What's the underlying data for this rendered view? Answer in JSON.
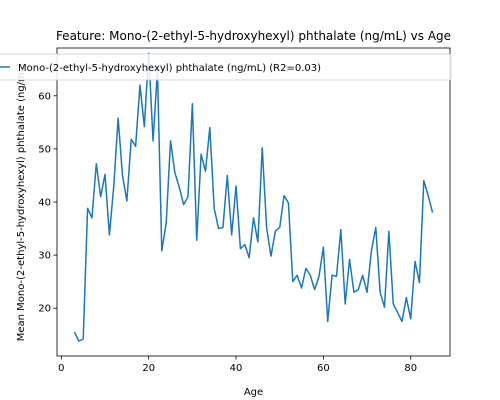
{
  "chart_data": {
    "type": "line",
    "title": "Feature: Mono-(2-ethyl-5-hydroxyhexyl) phthalate (ng/mL) vs Age",
    "xlabel": "Age",
    "ylabel": "Mean Mono-(2-ethyl-5-hydroxyhexyl) phthalate (ng/mL)",
    "xlim": [
      -1,
      89
    ],
    "ylim": [
      11,
      69
    ],
    "xticks": [
      0,
      20,
      40,
      60,
      80
    ],
    "yticks": [
      20,
      30,
      40,
      50,
      60
    ],
    "grid": false,
    "legend_position": "top",
    "color": "#1f77b4",
    "series": [
      {
        "name": "Mono-(2-ethyl-5-hydroxyhexyl) phthalate (ng/mL) (R2=0.03)",
        "x": [
          3,
          4,
          5,
          6,
          7,
          8,
          9,
          10,
          11,
          12,
          13,
          14,
          15,
          16,
          17,
          18,
          19,
          20,
          21,
          22,
          23,
          24,
          25,
          26,
          27,
          28,
          29,
          30,
          31,
          32,
          33,
          34,
          35,
          36,
          37,
          38,
          39,
          40,
          41,
          42,
          43,
          44,
          45,
          46,
          47,
          48,
          49,
          50,
          51,
          52,
          53,
          54,
          55,
          56,
          57,
          58,
          59,
          60,
          61,
          62,
          63,
          64,
          65,
          66,
          67,
          68,
          69,
          70,
          71,
          72,
          73,
          74,
          75,
          76,
          77,
          78,
          79,
          80,
          81,
          82,
          83,
          84,
          85
        ],
        "y": [
          15.5,
          13.8,
          14.2,
          38.8,
          37.0,
          47.2,
          41.0,
          45.2,
          33.8,
          43.0,
          55.8,
          45.0,
          40.2,
          51.8,
          50.5,
          62.0,
          54.2,
          68.0,
          51.5,
          64.8,
          30.8,
          36.0,
          51.5,
          45.5,
          42.8,
          39.5,
          41.0,
          58.5,
          32.8,
          49.0,
          45.8,
          54.0,
          38.8,
          35.0,
          35.2,
          45.0,
          33.8,
          43.0,
          31.2,
          32.0,
          29.5,
          37.0,
          32.5,
          50.2,
          35.2,
          29.8,
          34.5,
          35.2,
          41.2,
          39.8,
          25.0,
          26.2,
          23.8,
          27.5,
          26.2,
          23.5,
          26.0,
          31.5,
          17.5,
          26.2,
          26.0,
          34.8,
          20.8,
          29.2,
          23.0,
          23.5,
          26.2,
          23.0,
          30.8,
          35.2,
          23.0,
          20.2,
          34.5,
          20.8,
          19.2,
          17.5,
          22.0,
          18.0,
          28.8,
          24.8,
          44.0,
          41.2,
          38.0
        ]
      }
    ]
  }
}
